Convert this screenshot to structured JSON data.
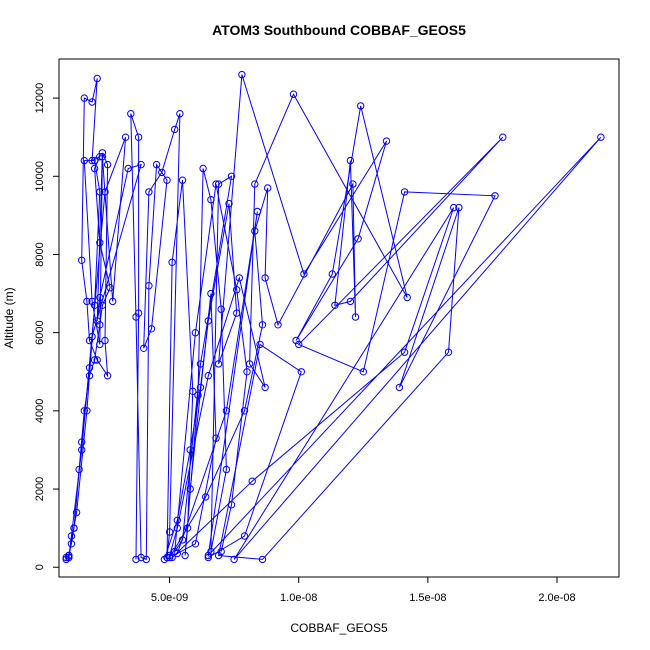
{
  "chart_data": {
    "type": "line",
    "title": "ATOM3 Southbound COBBAF_GEOS5",
    "xlabel": "COBBAF_GEOS5",
    "ylabel": "Altitude (m)",
    "xlim": [
      7.2e-10,
      2.24e-08
    ],
    "ylim": [
      -250,
      13000
    ],
    "x_ticks": [
      5e-09,
      1e-08,
      1.5e-08,
      2e-08
    ],
    "x_tick_labels": [
      "5.0e-09",
      "1.0e-08",
      "1.5e-08",
      "2.0e-08"
    ],
    "y_ticks": [
      0,
      2000,
      4000,
      6000,
      8000,
      10000,
      12000
    ],
    "y_tick_labels": [
      "0",
      "2000",
      "4000",
      "6000",
      "8000",
      "10000",
      "12000"
    ],
    "grid": false,
    "series_color": "#0000ff",
    "marker": "open-circle",
    "series": [
      {
        "points": [
          [
            1e-09,
            250
          ],
          [
            1.1e-09,
            300
          ],
          [
            1.2e-09,
            600
          ],
          [
            1.3e-09,
            1000
          ],
          [
            1.5e-09,
            2500
          ],
          [
            1.7e-09,
            4000
          ],
          [
            1.9e-09,
            4900
          ],
          [
            2.1e-09,
            5300
          ],
          [
            2.3e-09,
            6200
          ],
          [
            2.4e-09,
            6700
          ],
          [
            2.7e-09,
            7150
          ],
          [
            2.3e-09,
            8300
          ],
          [
            2.1e-09,
            10200
          ],
          [
            2.3e-09,
            10500
          ],
          [
            2e-09,
            10400
          ],
          [
            2.2e-09,
            12500
          ],
          [
            2e-09,
            11900
          ],
          [
            1.7e-09,
            12000
          ],
          [
            1.6e-09,
            7850
          ],
          [
            1.8e-09,
            6800
          ],
          [
            1.9e-09,
            5800
          ],
          [
            2.2e-09,
            5300
          ],
          [
            2.6e-09,
            4900
          ],
          [
            2.5e-09,
            5800
          ],
          [
            2.6e-09,
            10300
          ],
          [
            2.4e-09,
            10600
          ],
          [
            2.2e-09,
            6300
          ],
          [
            2.3e-09,
            6900
          ],
          [
            3.4e-09,
            10200
          ],
          [
            3.9e-09,
            10300
          ],
          [
            2e-09,
            5900
          ],
          [
            1.9e-09,
            5100
          ],
          [
            1.6e-09,
            3200
          ],
          [
            1.3e-09,
            1000
          ],
          [
            1.1e-09,
            250
          ],
          [
            1e-09,
            200
          ]
        ]
      },
      {
        "points": [
          [
            1.1e-09,
            300
          ],
          [
            1.4e-09,
            1400
          ],
          [
            1.8e-09,
            4000
          ],
          [
            2.1e-09,
            6700
          ],
          [
            2.3e-09,
            9600
          ],
          [
            2.1e-09,
            10400
          ],
          [
            1.7e-09,
            10400
          ],
          [
            2e-09,
            6800
          ],
          [
            2.3e-09,
            5700
          ],
          [
            2.4e-09,
            10500
          ],
          [
            2.8e-09,
            6800
          ],
          [
            3.3e-09,
            11000
          ],
          [
            2.5e-09,
            9600
          ],
          [
            1.6e-09,
            3000
          ],
          [
            1.2e-09,
            800
          ],
          [
            1.1e-09,
            250
          ]
        ]
      },
      {
        "points": [
          [
            3.7e-09,
            200
          ],
          [
            3.8e-09,
            6500
          ],
          [
            3.8e-09,
            11000
          ],
          [
            3.5e-09,
            11600
          ],
          [
            3.7e-09,
            6400
          ],
          [
            3.9e-09,
            250
          ],
          [
            4.1e-09,
            200
          ],
          [
            4.2e-09,
            7200
          ],
          [
            4.5e-09,
            10300
          ],
          [
            4.9e-09,
            9900
          ],
          [
            4.3e-09,
            6100
          ],
          [
            4e-09,
            5600
          ],
          [
            4.2e-09,
            9600
          ],
          [
            4.7e-09,
            10100
          ],
          [
            5.2e-09,
            11200
          ],
          [
            5.4e-09,
            11600
          ],
          [
            5e-09,
            900
          ],
          [
            4.9e-09,
            250
          ],
          [
            5.1e-09,
            7800
          ],
          [
            5.5e-09,
            9900
          ],
          [
            5.9e-09,
            4500
          ],
          [
            5.7e-09,
            1000
          ],
          [
            5.6e-09,
            300
          ],
          [
            6.1e-09,
            4400
          ],
          [
            6.3e-09,
            10200
          ],
          [
            6.6e-09,
            9400
          ],
          [
            7e-09,
            6600
          ],
          [
            7.2e-09,
            2500
          ],
          [
            6.6e-09,
            400
          ],
          [
            6.9e-09,
            9800
          ],
          [
            7.4e-09,
            10000
          ],
          [
            6.2e-09,
            5200
          ],
          [
            5.5e-09,
            700
          ],
          [
            5.2e-09,
            400
          ],
          [
            6e-09,
            6000
          ],
          [
            6.8e-09,
            9800
          ],
          [
            7.6e-09,
            7100
          ],
          [
            8e-09,
            5000
          ],
          [
            7.4e-09,
            1600
          ],
          [
            7e-09,
            400
          ]
        ]
      },
      {
        "points": [
          [
            4.8e-09,
            200
          ],
          [
            5.3e-09,
            1200
          ],
          [
            5.8e-09,
            3000
          ],
          [
            6.2e-09,
            4600
          ],
          [
            6.5e-09,
            6300
          ],
          [
            7.3e-09,
            9300
          ],
          [
            7.6e-09,
            6500
          ],
          [
            6.9e-09,
            5200
          ],
          [
            7.8e-09,
            12600
          ],
          [
            1.02e-08,
            7500
          ],
          [
            1.34e-08,
            10900
          ],
          [
            1.23e-08,
            8400
          ],
          [
            9.9e-09,
            5800
          ],
          [
            1.13e-08,
            7500
          ],
          [
            1.24e-08,
            11800
          ],
          [
            1.42e-08,
            6900
          ],
          [
            9.8e-09,
            12100
          ],
          [
            8.3e-09,
            9800
          ],
          [
            8.1e-09,
            5200
          ],
          [
            8.7e-09,
            4600
          ],
          [
            7.7e-09,
            7400
          ],
          [
            6.5e-09,
            4900
          ],
          [
            5.3e-09,
            1000
          ],
          [
            5e-09,
            300
          ]
        ]
      },
      {
        "points": [
          [
            5e-09,
            250
          ],
          [
            6.4e-09,
            1800
          ],
          [
            7.9e-09,
            4000
          ],
          [
            8.6e-09,
            6200
          ],
          [
            8.3e-09,
            8600
          ],
          [
            8.8e-09,
            9700
          ],
          [
            8.7e-09,
            7400
          ],
          [
            9.2e-09,
            6200
          ],
          [
            1.21e-08,
            9800
          ],
          [
            1.22e-08,
            6400
          ],
          [
            1.2e-08,
            10400
          ],
          [
            1.14e-08,
            6700
          ],
          [
            1.2e-08,
            6800
          ],
          [
            1.79e-08,
            11000
          ],
          [
            1e-08,
            5700
          ],
          [
            1.25e-08,
            5000
          ],
          [
            1.41e-08,
            9600
          ],
          [
            1.76e-08,
            9500
          ],
          [
            1.39e-08,
            4600
          ],
          [
            1.62e-08,
            9200
          ],
          [
            1.58e-08,
            5500
          ],
          [
            8.6e-09,
            200
          ],
          [
            6.9e-09,
            300
          ],
          [
            8.5e-09,
            5700
          ],
          [
            1.01e-08,
            5000
          ],
          [
            7.9e-09,
            800
          ],
          [
            6.5e-09,
            250
          ]
        ]
      },
      {
        "points": [
          [
            5.1e-09,
            250
          ],
          [
            8.2e-09,
            2200
          ],
          [
            1.41e-08,
            5500
          ],
          [
            1.6e-08,
            9200
          ],
          [
            7.5e-09,
            200
          ],
          [
            2.17e-08,
            11000
          ],
          [
            6.5e-09,
            300
          ],
          [
            8.4e-09,
            9100
          ],
          [
            7.2e-09,
            4000
          ],
          [
            5.3e-09,
            350
          ],
          [
            6e-09,
            600
          ],
          [
            6.8e-09,
            3300
          ],
          [
            6.6e-09,
            7000
          ],
          [
            5.8e-09,
            2000
          ]
        ]
      }
    ]
  }
}
